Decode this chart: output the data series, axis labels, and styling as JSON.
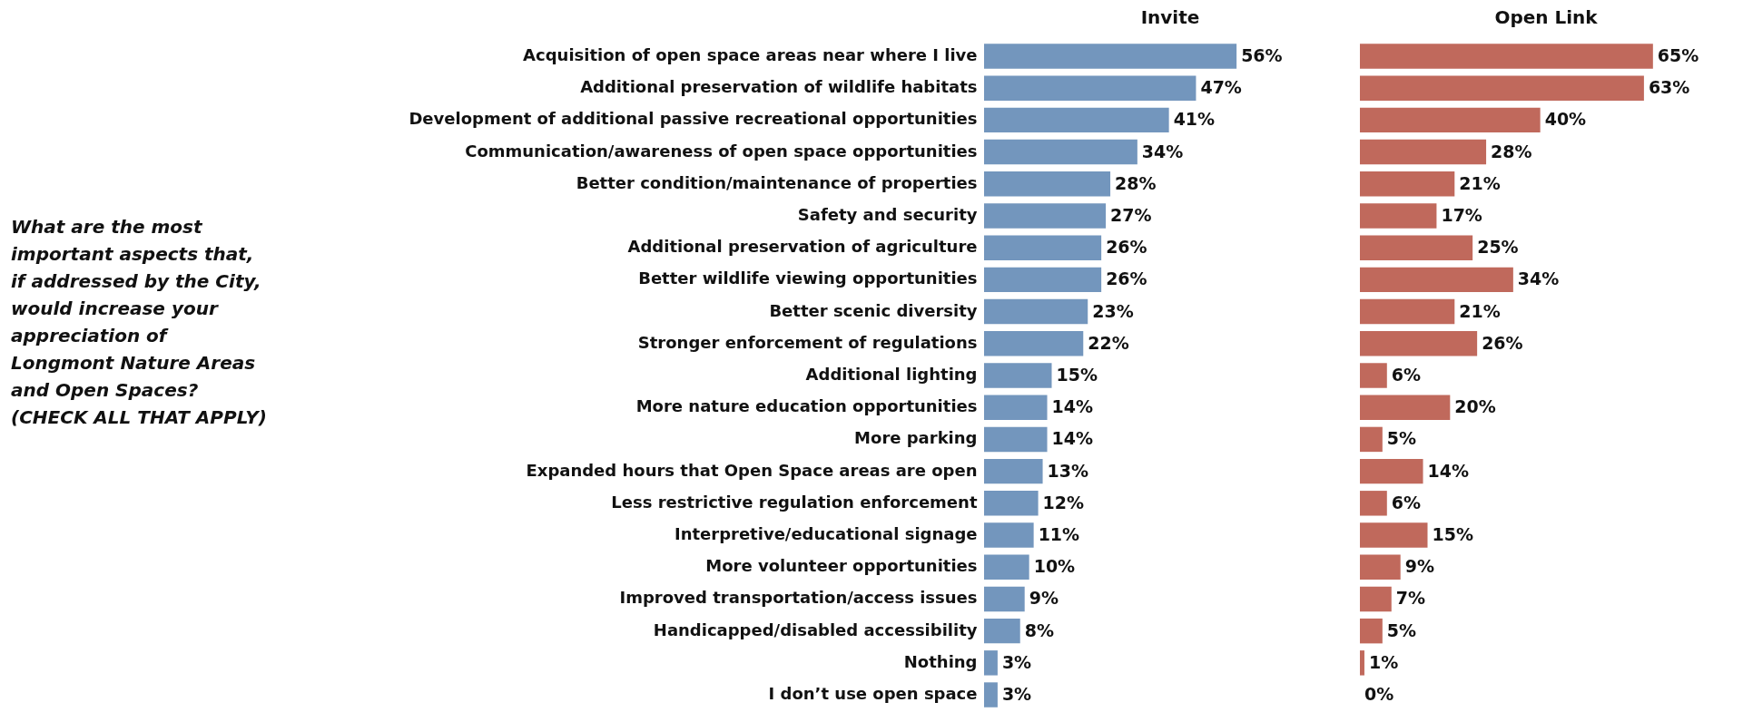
{
  "chart_data": [
    {
      "type": "bar",
      "orientation": "horizontal",
      "title": "Invite",
      "ylabel": "What are the most important aspects that, if addressed by the City, would increase your appreciation of Longmont Nature Areas and Open Spaces? (CHECK ALL THAT APPLY)",
      "tick_labels": "y",
      "color": "#7396bd",
      "categories": [
        "Acquisition of open space areas near where I live",
        "Additional preservation of wildlife habitats",
        "Development of additional passive recreational opportunities",
        "Communication/awareness of open space opportunities",
        "Better condition/maintenance of properties",
        "Safety and security",
        "Additional preservation of agriculture",
        "Better wildlife viewing opportunities",
        "Better scenic diversity",
        "Stronger enforcement of regulations",
        "Additional lighting",
        "More nature education opportunities",
        "More parking",
        "Expanded hours that Open Space areas are open",
        "Less restrictive regulation enforcement",
        "Interpretive/educational signage",
        "More volunteer opportunities",
        "Improved transportation/access issues",
        "Handicapped/disabled accessibility",
        "Nothing",
        "I don’t use open space"
      ],
      "values": [
        56,
        47,
        41,
        34,
        28,
        27,
        26,
        26,
        23,
        22,
        15,
        14,
        14,
        13,
        12,
        11,
        10,
        9,
        8,
        3,
        3
      ],
      "value_labels": [
        "56%",
        "47%",
        "41%",
        "34%",
        "28%",
        "27%",
        "26%",
        "26%",
        "23%",
        "22%",
        "15%",
        "14%",
        "14%",
        "13%",
        "12%",
        "11%",
        "10%",
        "9%",
        "8%",
        "3%",
        "3%"
      ]
    },
    {
      "type": "bar",
      "orientation": "horizontal",
      "title": "Open Link",
      "tick_labels": false,
      "color": "#c0695c",
      "categories": [
        null,
        null,
        null,
        null,
        null,
        null,
        null,
        null,
        null,
        null,
        null,
        null,
        null,
        null,
        null,
        null,
        null,
        null,
        null,
        null,
        null
      ],
      "values": [
        65,
        63,
        40,
        28,
        21,
        17,
        25,
        34,
        21,
        26,
        6,
        20,
        5,
        14,
        6,
        15,
        9,
        7,
        5,
        1,
        0
      ],
      "value_labels": [
        "65%",
        "63%",
        "40%",
        "28%",
        "21%",
        "17%",
        "25%",
        "34%",
        "21%",
        "26%",
        "6%",
        "20%",
        "5%",
        "14%",
        "6%",
        "15%",
        "9%",
        "7%",
        "5%",
        "1%",
        "0%"
      ]
    }
  ]
}
